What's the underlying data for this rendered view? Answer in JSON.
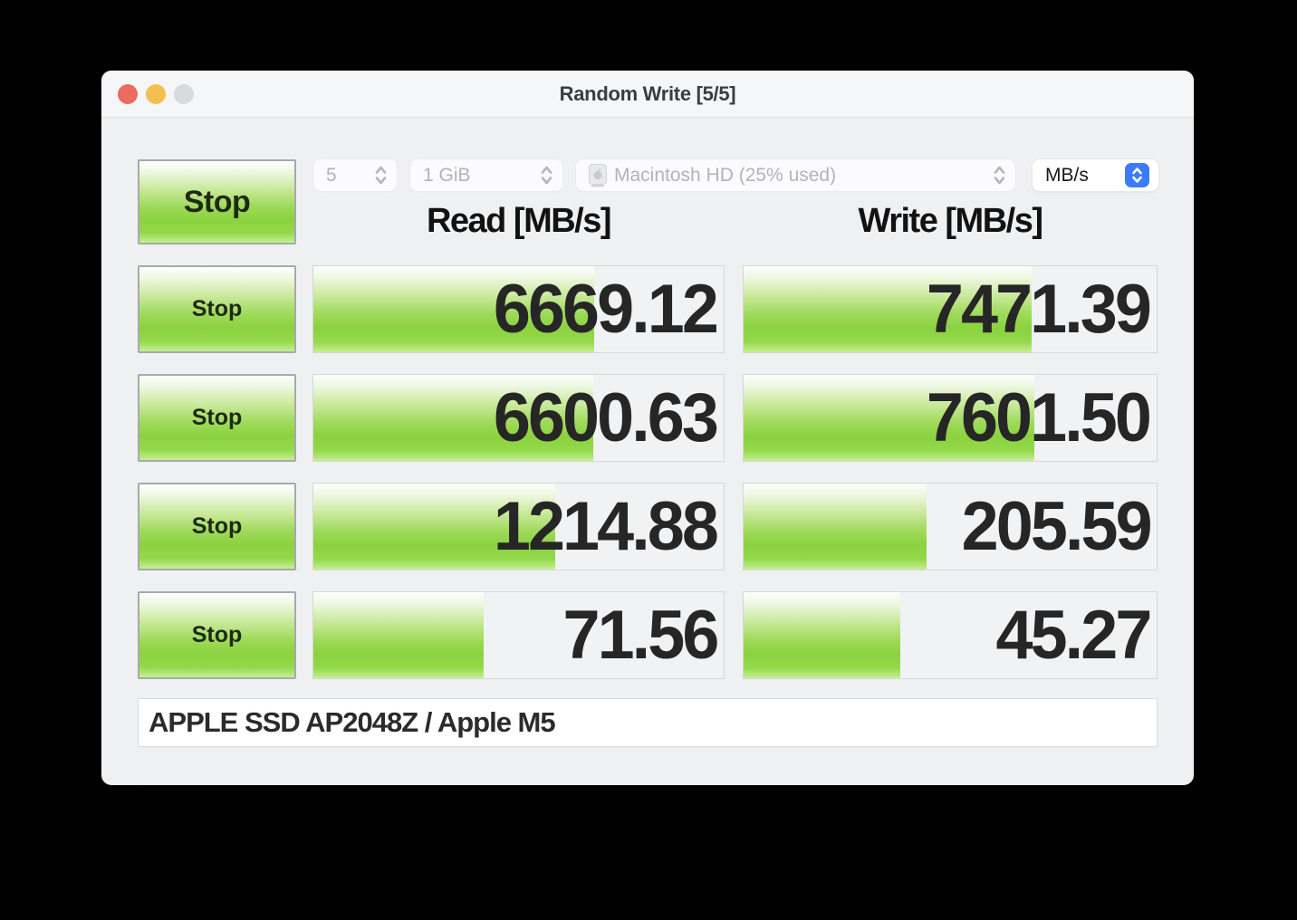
{
  "window": {
    "title": "Random Write [5/5]"
  },
  "toolbar": {
    "stop_all_label": "Stop",
    "test_count": "5",
    "test_size": "1 GiB",
    "volume": "Macintosh HD (25% used)",
    "volume_icon": "internal-drive-icon",
    "unit": "MB/s"
  },
  "headers": {
    "read": "Read [MB/s]",
    "write": "Write [MB/s]"
  },
  "rows": [
    {
      "stop_label": "Stop",
      "read": {
        "value": "6669.12",
        "bar_percent": 68.5
      },
      "write": {
        "value": "7471.39",
        "bar_percent": 69.8
      }
    },
    {
      "stop_label": "Stop",
      "read": {
        "value": "6600.63",
        "bar_percent": 68.2
      },
      "write": {
        "value": "7601.50",
        "bar_percent": 70.3
      }
    },
    {
      "stop_label": "Stop",
      "read": {
        "value": "1214.88",
        "bar_percent": 59.0
      },
      "write": {
        "value": "205.59",
        "bar_percent": 44.3
      }
    },
    {
      "stop_label": "Stop",
      "read": {
        "value": "71.56",
        "bar_percent": 41.5
      },
      "write": {
        "value": "45.27",
        "bar_percent": 38.0
      }
    }
  ],
  "footer": {
    "device_info": "APPLE SSD AP2048Z / Apple M5"
  },
  "colors": {
    "accent_blue": "#3d7bfd",
    "bar_green": "#8bd23f",
    "traffic_red": "#ec6a5e",
    "traffic_yellow": "#f4bf4f",
    "traffic_gray": "#d8dadc",
    "window_bg": "#eff0f2"
  }
}
